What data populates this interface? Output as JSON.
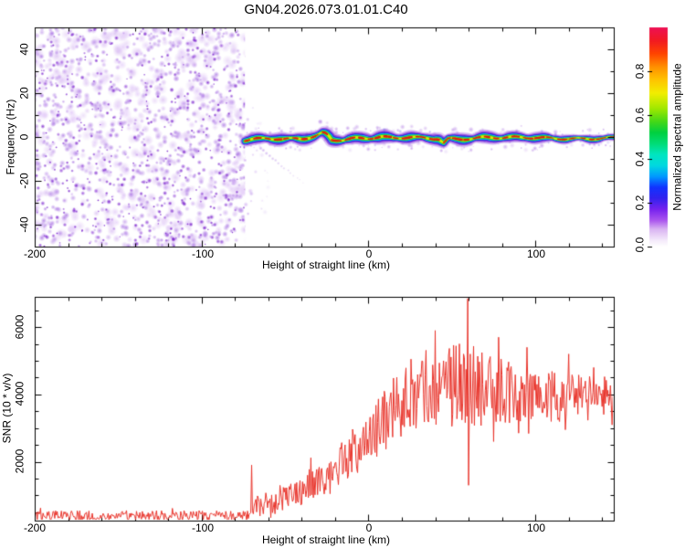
{
  "title": "GN04.2026.073.01.01.C40",
  "colors": {
    "axis": "#000000",
    "background": "#ffffff",
    "snr_trace": "#e8342b",
    "ridge_layers": [
      {
        "color": "#b07ae6",
        "width": 13,
        "alpha": 0.22
      },
      {
        "color": "#8a3ada",
        "width": 9.5,
        "alpha": 0.5
      },
      {
        "color": "#2d2de0",
        "width": 7,
        "alpha": 0.95
      },
      {
        "color": "#00c2e8",
        "width": 5.2,
        "alpha": 1
      },
      {
        "color": "#2bc832",
        "width": 3.8,
        "alpha": 1
      },
      {
        "color": "#d8ec00",
        "width": 2.2,
        "alpha": 1
      }
    ],
    "ridge_core": "#dd2010",
    "noise_palette": {
      "light": [
        "#ead9f8",
        "#dfc7f5",
        "#e7d2fa"
      ],
      "medium": [
        "#c9a3ef",
        "#b282e6",
        "#bd93ea"
      ],
      "dark": [
        "#9b54dc",
        "#8333d2",
        "#7a22cc"
      ]
    }
  },
  "chart_data": [
    {
      "type": "heatmap",
      "panel": "spectrogram",
      "xlabel": "Height of straight line (km)",
      "ylabel": "Frequency (Hz)",
      "xlim": [
        -200,
        147
      ],
      "ylim": [
        -50,
        50
      ],
      "x_ticks": {
        "major": [
          -200,
          -100,
          0,
          100
        ],
        "labels": [
          "-200",
          "-100",
          "0",
          "100"
        ],
        "minor_step": 20
      },
      "y_ticks": {
        "major": [
          40,
          20,
          0,
          -20,
          -40
        ],
        "labels": [
          "40",
          "20",
          "0",
          "-20",
          "-40"
        ],
        "minor_step": 10
      },
      "noise_region": {
        "x_start": -200,
        "x_end": -74,
        "description": "broadband speckle noise, purple blobs on white"
      },
      "signal_ridge": {
        "x_start": -74,
        "x_end": 147,
        "halfwidth_hz": 3.5,
        "centerline": [
          [
            -74,
            -1.5
          ],
          [
            -70,
            -1.2
          ],
          [
            -60,
            -1.0
          ],
          [
            -50,
            -1.2
          ],
          [
            -40,
            -0.8
          ],
          [
            -32,
            0.5
          ],
          [
            -27,
            2.2
          ],
          [
            -24,
            1.0
          ],
          [
            -22,
            -1.0
          ],
          [
            -15,
            -1.0
          ],
          [
            -8,
            -0.5
          ],
          [
            0,
            -0.6
          ],
          [
            8,
            -0.3
          ],
          [
            15,
            -0.8
          ],
          [
            25,
            -0.3
          ],
          [
            35,
            -0.5
          ],
          [
            42,
            -0.5
          ],
          [
            45,
            -2.5
          ],
          [
            48,
            -0.5
          ],
          [
            55,
            -0.7
          ],
          [
            60,
            -0.5
          ],
          [
            70,
            -0.2
          ],
          [
            80,
            -0.5
          ],
          [
            90,
            -0.5
          ],
          [
            100,
            -0.5
          ],
          [
            120,
            -0.5
          ],
          [
            147,
            -0.5
          ]
        ]
      },
      "diagonal_streak": {
        "from": [
          -65,
          -5
        ],
        "to": [
          -39,
          -21
        ]
      },
      "colorbar": {
        "label": "Normalized spectral amplitude",
        "range": [
          0,
          1
        ],
        "ticks": [
          0,
          0.2,
          0.4,
          0.6,
          0.8
        ],
        "tick_labels": [
          "0.0",
          "0.2",
          "0.4",
          "0.6",
          "0.8"
        ],
        "gradient": [
          [
            0.0,
            "#ffffff"
          ],
          [
            0.03,
            "#f4e9fb"
          ],
          [
            0.08,
            "#d9b3f2"
          ],
          [
            0.12,
            "#aa55ee"
          ],
          [
            0.17,
            "#7722ee"
          ],
          [
            0.22,
            "#3322ee"
          ],
          [
            0.27,
            "#1133ff"
          ],
          [
            0.32,
            "#0099ff"
          ],
          [
            0.37,
            "#00d9e0"
          ],
          [
            0.42,
            "#00e6c0"
          ],
          [
            0.47,
            "#00dd77"
          ],
          [
            0.52,
            "#00d040"
          ],
          [
            0.57,
            "#44d818"
          ],
          [
            0.63,
            "#a0e800"
          ],
          [
            0.7,
            "#f2ee00"
          ],
          [
            0.76,
            "#ffc400"
          ],
          [
            0.82,
            "#ff9000"
          ],
          [
            0.88,
            "#ff4400"
          ],
          [
            0.94,
            "#f21a22"
          ],
          [
            1.0,
            "#ee1155"
          ]
        ]
      }
    },
    {
      "type": "line",
      "panel": "snr",
      "xlabel": "Height of straight line (km)",
      "ylabel": "SNR (10 * v/v)",
      "xlim": [
        -200,
        147
      ],
      "ylim": [
        250,
        6900
      ],
      "x_ticks": {
        "major": [
          -200,
          -100,
          0,
          100
        ],
        "labels": [
          "-200",
          "-100",
          "0",
          "100"
        ],
        "minor_step": 20
      },
      "y_ticks": {
        "major": [
          6000,
          4000,
          2000
        ],
        "labels": [
          "6000",
          "4000",
          "2000"
        ],
        "minor_step": 500
      },
      "series": [
        {
          "name": "SNR",
          "color": "#e8342b",
          "baseline": {
            "x_start": -200,
            "x_end": -70.5,
            "center": 400,
            "halfrange": 150
          },
          "envelope": [
            [
              -70.5,
              700,
              400
            ],
            [
              -65,
              800,
              420
            ],
            [
              -57,
              700,
              380
            ],
            [
              -50,
              1050,
              450
            ],
            [
              -45,
              1050,
              450
            ],
            [
              -38,
              1250,
              500
            ],
            [
              -30,
              1450,
              500
            ],
            [
              -25,
              1600,
              550
            ],
            [
              -20,
              1800,
              600
            ],
            [
              -15,
              2050,
              650
            ],
            [
              -10,
              2250,
              700
            ],
            [
              -5,
              2450,
              750
            ],
            [
              0,
              2600,
              800
            ],
            [
              5,
              2900,
              900
            ],
            [
              10,
              3200,
              950
            ],
            [
              15,
              3500,
              1000
            ],
            [
              20,
              3800,
              1050
            ],
            [
              25,
              4000,
              1100
            ],
            [
              30,
              4150,
              1150
            ],
            [
              35,
              4250,
              1200
            ],
            [
              40,
              4300,
              1250
            ],
            [
              45,
              4300,
              1250
            ],
            [
              50,
              4250,
              1250
            ],
            [
              55,
              4300,
              1300
            ],
            [
              60,
              4350,
              1300
            ],
            [
              65,
              4200,
              1150
            ],
            [
              70,
              4150,
              1100
            ],
            [
              75,
              4150,
              1050
            ],
            [
              80,
              4100,
              1000
            ],
            [
              90,
              4050,
              950
            ],
            [
              100,
              4000,
              850
            ],
            [
              110,
              3950,
              800
            ],
            [
              120,
              3950,
              750
            ],
            [
              130,
              3900,
              700
            ],
            [
              140,
              3900,
              650
            ],
            [
              147,
              3850,
              600
            ]
          ],
          "spikes": [
            [
              -70,
              1900
            ],
            [
              -69,
              450
            ],
            [
              40,
              5900
            ],
            [
              57,
              5200
            ],
            [
              59.5,
              6850
            ],
            [
              60,
              1300
            ],
            [
              61,
              5200
            ],
            [
              75,
              2600
            ],
            [
              78,
              5700
            ],
            [
              90,
              2850
            ],
            [
              95,
              5400
            ],
            [
              118,
              2950
            ],
            [
              120,
              5200
            ],
            [
              135,
              4800
            ]
          ]
        }
      ]
    }
  ]
}
